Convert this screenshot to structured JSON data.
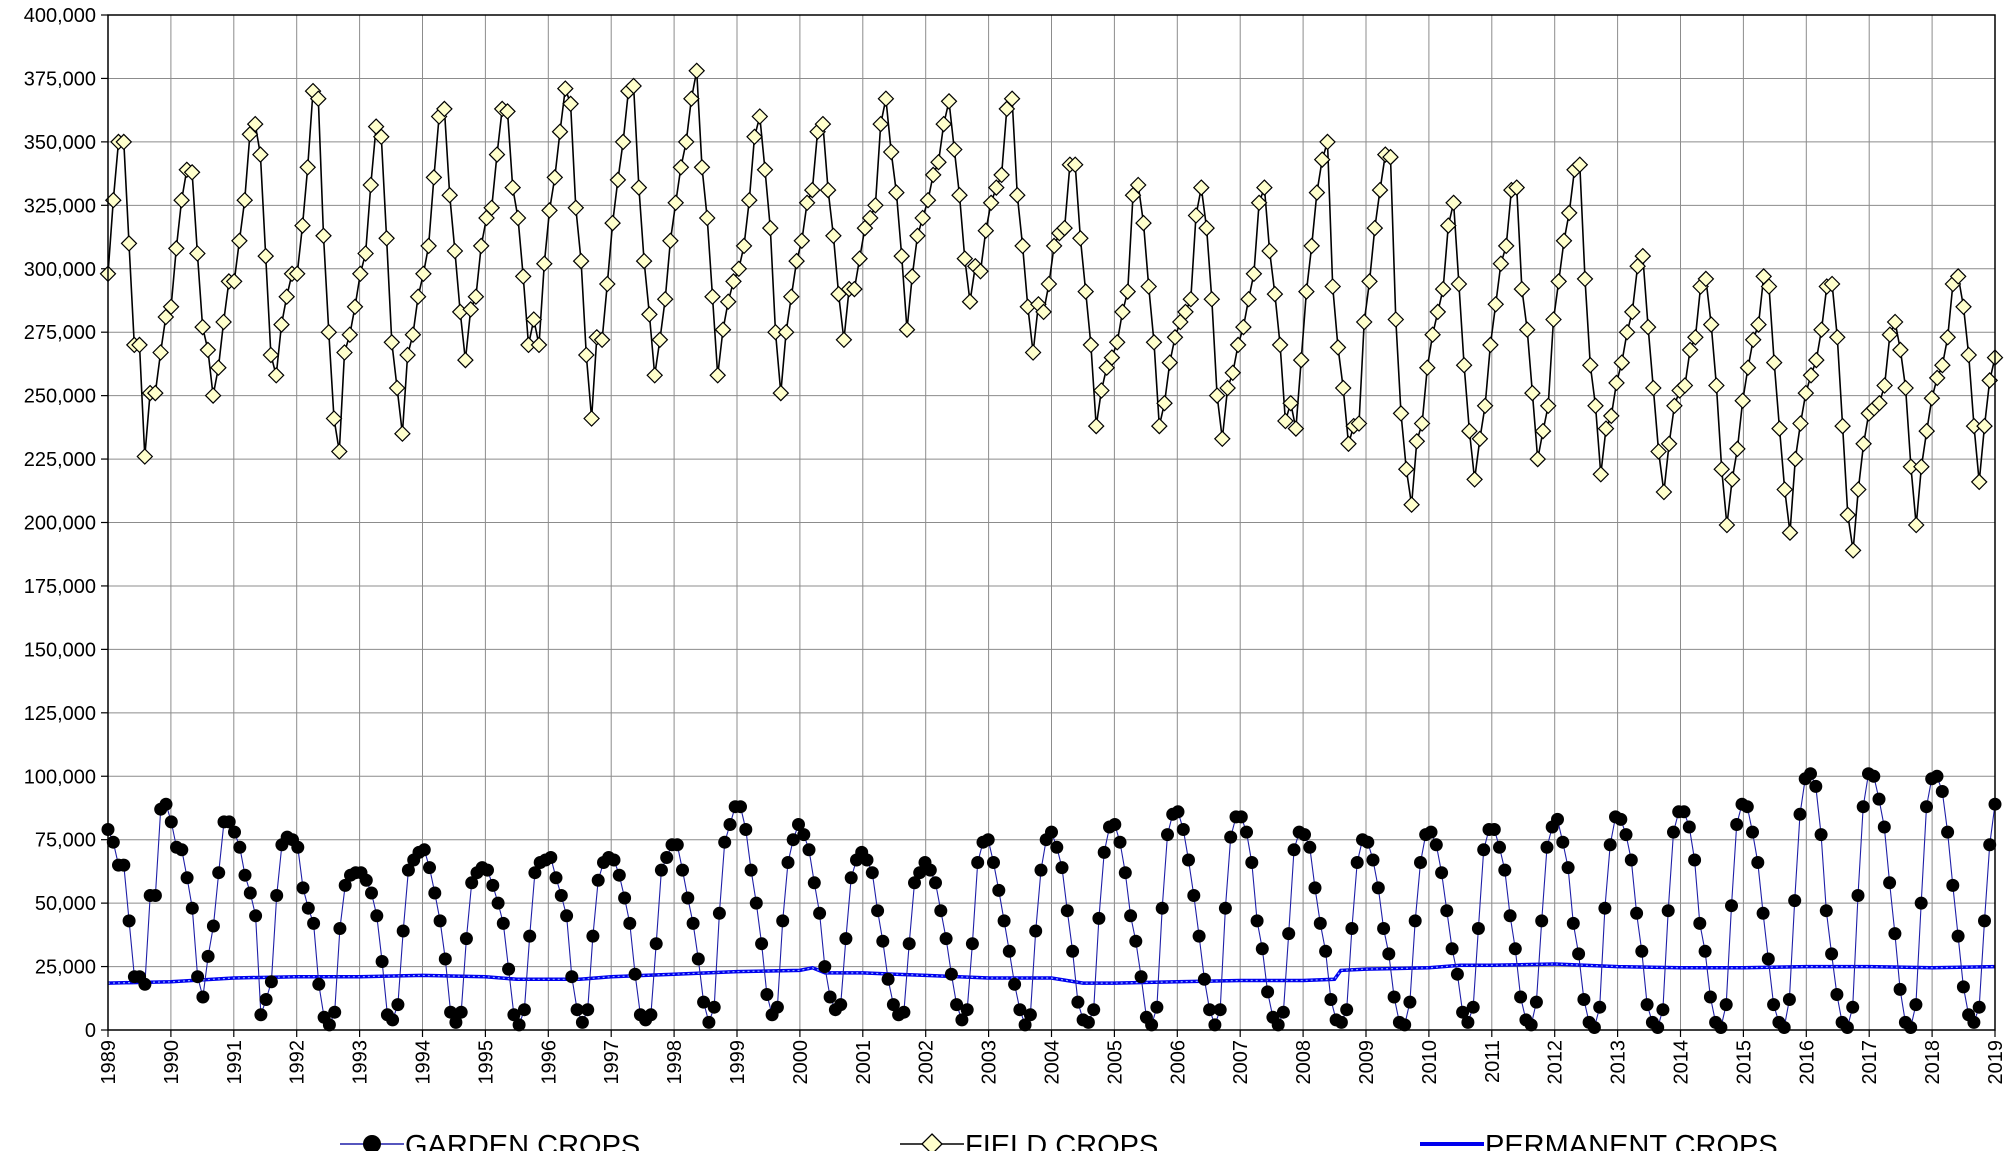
{
  "chart_data": {
    "type": "line",
    "title": "",
    "xlabel": "",
    "ylabel": "",
    "xlim": [
      1989,
      2019
    ],
    "ylim": [
      0,
      400000
    ],
    "grid": true,
    "legend_position": "bottom",
    "x_ticks": [
      "1989",
      "1990",
      "1991",
      "1992",
      "1993",
      "1994",
      "1995",
      "1996",
      "1997",
      "1998",
      "1999",
      "2000",
      "2001",
      "2002",
      "2003",
      "2004",
      "2005",
      "2006",
      "2007",
      "2008",
      "2009",
      "2010",
      "2011",
      "2012",
      "2013",
      "2014",
      "2015",
      "2016",
      "2017",
      "2018",
      "2019"
    ],
    "y_ticks": [
      "0",
      "25,000",
      "50,000",
      "75,000",
      "100,000",
      "125,000",
      "150,000",
      "175,000",
      "200,000",
      "225,000",
      "250,000",
      "275,000",
      "300,000",
      "325,000",
      "350,000",
      "375,000",
      "400,000"
    ],
    "y_tick_values": [
      0,
      25000,
      50000,
      75000,
      100000,
      125000,
      150000,
      175000,
      200000,
      225000,
      250000,
      275000,
      300000,
      325000,
      350000,
      375000,
      400000
    ],
    "series": [
      {
        "name": "GARDEN CROPS",
        "marker": "circle",
        "line_color": "#1f1fa8",
        "marker_fill": "#000000",
        "values": [
          79000,
          74000,
          65000,
          65000,
          43000,
          21000,
          21000,
          18000,
          53000,
          53000,
          87000,
          89000,
          82000,
          72000,
          71000,
          60000,
          48000,
          21000,
          13000,
          29000,
          41000,
          62000,
          82000,
          82000,
          78000,
          72000,
          61000,
          54000,
          45000,
          6000,
          12000,
          19000,
          53000,
          73000,
          76000,
          75000,
          72000,
          56000,
          48000,
          42000,
          18000,
          5000,
          2000,
          7000,
          40000,
          57000,
          61000,
          62000,
          62000,
          59000,
          54000,
          45000,
          27000,
          6000,
          4000,
          10000,
          39000,
          63000,
          67000,
          70000,
          71000,
          64000,
          54000,
          43000,
          28000,
          7000,
          3000,
          7000,
          36000,
          58000,
          62000,
          64000,
          63000,
          57000,
          50000,
          42000,
          24000,
          6000,
          2000,
          8000,
          37000,
          62000,
          66000,
          67000,
          68000,
          60000,
          53000,
          45000,
          21000,
          8000,
          3000,
          8000,
          37000,
          59000,
          66000,
          68000,
          67000,
          61000,
          52000,
          42000,
          22000,
          6000,
          4000,
          6000,
          34000,
          63000,
          68000,
          73000,
          73000,
          63000,
          52000,
          42000,
          28000,
          11000,
          3000,
          9000,
          46000,
          74000,
          81000,
          88000,
          88000,
          79000,
          63000,
          50000,
          34000,
          14000,
          6000,
          9000,
          43000,
          66000,
          75000,
          81000,
          77000,
          71000,
          58000,
          46000,
          25000,
          13000,
          8000,
          10000,
          36000,
          60000,
          67000,
          70000,
          67000,
          62000,
          47000,
          35000,
          20000,
          10000,
          6000,
          7000,
          34000,
          58000,
          62000,
          66000,
          63000,
          58000,
          47000,
          36000,
          22000,
          10000,
          4000,
          8000,
          34000,
          66000,
          74000,
          75000,
          66000,
          55000,
          43000,
          31000,
          18000,
          8000,
          2000,
          6000,
          39000,
          63000,
          75000,
          78000,
          72000,
          64000,
          47000,
          31000,
          11000,
          4000,
          3000,
          8000,
          44000,
          70000,
          80000,
          81000,
          74000,
          62000,
          45000,
          35000,
          21000,
          5000,
          2000,
          9000,
          48000,
          77000,
          85000,
          86000,
          79000,
          67000,
          53000,
          37000,
          20000,
          8000,
          2000,
          8000,
          48000,
          76000,
          84000,
          84000,
          78000,
          66000,
          43000,
          32000,
          15000,
          5000,
          2000,
          7000,
          38000,
          71000,
          78000,
          77000,
          72000,
          56000,
          42000,
          31000,
          12000,
          4000,
          3000,
          8000,
          40000,
          66000,
          75000,
          74000,
          67000,
          56000,
          40000,
          30000,
          13000,
          3000,
          2000,
          11000,
          43000,
          66000,
          77000,
          78000,
          73000,
          62000,
          47000,
          32000,
          22000,
          7000,
          3000,
          9000,
          40000,
          71000,
          79000,
          79000,
          72000,
          63000,
          45000,
          32000,
          13000,
          4000,
          2000,
          11000,
          43000,
          72000,
          80000,
          83000,
          74000,
          64000,
          42000,
          30000,
          12000,
          3000,
          1000,
          9000,
          48000,
          73000,
          84000,
          83000,
          77000,
          67000,
          46000,
          31000,
          10000,
          3000,
          1000,
          8000,
          47000,
          78000,
          86000,
          86000,
          80000,
          67000,
          42000,
          31000,
          13000,
          3000,
          1000,
          10000,
          49000,
          81000,
          89000,
          88000,
          78000,
          66000,
          46000,
          28000,
          10000,
          3000,
          1000,
          12000,
          51000,
          85000,
          99000,
          101000,
          96000,
          77000,
          47000,
          30000,
          14000,
          3000,
          1000,
          9000,
          53000,
          88000,
          101000,
          100000,
          91000,
          80000,
          58000,
          38000,
          16000,
          3000,
          1000,
          10000,
          50000,
          88000,
          99000,
          100000,
          94000,
          78000,
          57000,
          37000,
          17000,
          6000,
          3000,
          9000,
          43000,
          73000,
          89000
        ]
      },
      {
        "name": "FIELD CROPS",
        "marker": "diamond",
        "line_color": "#000000",
        "marker_fill": "#ffffcc",
        "values": [
          298000,
          327000,
          350000,
          350000,
          310000,
          270000,
          270000,
          226000,
          251000,
          251000,
          267000,
          281000,
          285000,
          308000,
          327000,
          339000,
          338000,
          306000,
          277000,
          268000,
          250000,
          261000,
          279000,
          295000,
          295000,
          311000,
          327000,
          353000,
          357000,
          345000,
          305000,
          266000,
          258000,
          278000,
          289000,
          298000,
          298000,
          317000,
          340000,
          370000,
          367000,
          313000,
          275000,
          241000,
          228000,
          267000,
          274000,
          285000,
          298000,
          306000,
          333000,
          356000,
          352000,
          312000,
          271000,
          253000,
          235000,
          266000,
          274000,
          289000,
          298000,
          309000,
          336000,
          360000,
          363000,
          329000,
          307000,
          283000,
          264000,
          284000,
          289000,
          309000,
          320000,
          324000,
          345000,
          363000,
          362000,
          332000,
          320000,
          297000,
          270000,
          280000,
          270000,
          302000,
          323000,
          336000,
          354000,
          371000,
          365000,
          324000,
          303000,
          266000,
          241000,
          273000,
          272000,
          294000,
          318000,
          335000,
          350000,
          370000,
          372000,
          332000,
          303000,
          282000,
          258000,
          272000,
          288000,
          311000,
          326000,
          340000,
          350000,
          367000,
          378000,
          340000,
          320000,
          289000,
          258000,
          276000,
          287000,
          295000,
          300000,
          309000,
          327000,
          352000,
          360000,
          339000,
          316000,
          275000,
          251000,
          275000,
          289000,
          303000,
          311000,
          326000,
          331000,
          354000,
          357000,
          331000,
          313000,
          290000,
          272000,
          292000,
          292000,
          304000,
          316000,
          320000,
          325000,
          357000,
          367000,
          346000,
          330000,
          305000,
          276000,
          297000,
          313000,
          320000,
          327000,
          337000,
          342000,
          357000,
          366000,
          347000,
          329000,
          304000,
          287000,
          301000,
          299000,
          315000,
          326000,
          332000,
          337000,
          363000,
          367000,
          329000,
          309000,
          285000,
          267000,
          286000,
          283000,
          294000,
          309000,
          314000,
          316000,
          341000,
          341000,
          312000,
          291000,
          270000,
          238000,
          252000,
          261000,
          265000,
          271000,
          283000,
          291000,
          329000,
          333000,
          318000,
          293000,
          271000,
          238000,
          247000,
          263000,
          273000,
          279000,
          283000,
          288000,
          321000,
          332000,
          316000,
          288000,
          250000,
          233000,
          253000,
          259000,
          270000,
          277000,
          288000,
          298000,
          326000,
          332000,
          307000,
          290000,
          270000,
          240000,
          247000,
          237000,
          264000,
          291000,
          309000,
          330000,
          343000,
          350000,
          293000,
          269000,
          253000,
          231000,
          238000,
          239000,
          279000,
          295000,
          316000,
          331000,
          345000,
          344000,
          280000,
          243000,
          221000,
          207000,
          232000,
          239000,
          261000,
          274000,
          283000,
          292000,
          317000,
          326000,
          294000,
          262000,
          236000,
          217000,
          233000,
          246000,
          270000,
          286000,
          302000,
          309000,
          331000,
          332000,
          292000,
          276000,
          251000,
          225000,
          236000,
          246000,
          280000,
          295000,
          311000,
          322000,
          339000,
          341000,
          296000,
          262000,
          246000,
          219000,
          237000,
          242000,
          255000,
          263000,
          275000,
          283000,
          301000,
          305000,
          277000,
          253000,
          228000,
          212000,
          231000,
          246000,
          252000,
          254000,
          268000,
          273000,
          293000,
          296000,
          278000,
          254000,
          221000,
          199000,
          217000,
          229000,
          248000,
          261000,
          272000,
          278000,
          297000,
          293000,
          263000,
          237000,
          213000,
          196000,
          225000,
          239000,
          251000,
          258000,
          264000,
          276000,
          293000,
          294000,
          273000,
          238000,
          203000,
          189000,
          213000,
          231000,
          243000,
          245000,
          247000,
          254000,
          274000,
          279000,
          268000,
          253000,
          222000,
          199000,
          222000,
          236000,
          249000,
          257000,
          262000,
          273000,
          294000,
          297000,
          285000,
          266000,
          238000,
          216000,
          238000,
          256000,
          265000
        ]
      },
      {
        "name": "PERMANENT CROPS",
        "marker": "none",
        "line_color": "#0000ee",
        "points": [
          [
            1989,
            18500
          ],
          [
            1990,
            19000
          ],
          [
            1991,
            20500
          ],
          [
            1992,
            21000
          ],
          [
            1993,
            21000
          ],
          [
            1994,
            21500
          ],
          [
            1995,
            21000
          ],
          [
            1995.5,
            20000
          ],
          [
            1996,
            20000
          ],
          [
            1996.5,
            20000
          ],
          [
            1997,
            21000
          ],
          [
            1998,
            22000
          ],
          [
            1999,
            23000
          ],
          [
            2000,
            23500
          ],
          [
            2000.2,
            24500
          ],
          [
            2000.4,
            22500
          ],
          [
            2001,
            22500
          ],
          [
            2002,
            21500
          ],
          [
            2003,
            20500
          ],
          [
            2004,
            20500
          ],
          [
            2004.5,
            18500
          ],
          [
            2005,
            18500
          ],
          [
            2006,
            19000
          ],
          [
            2007,
            19500
          ],
          [
            2008,
            19500
          ],
          [
            2008.5,
            20000
          ],
          [
            2008.6,
            23500
          ],
          [
            2009,
            24000
          ],
          [
            2010,
            24500
          ],
          [
            2010.5,
            25500
          ],
          [
            2011,
            25500
          ],
          [
            2012,
            26000
          ],
          [
            2013,
            25000
          ],
          [
            2014,
            24500
          ],
          [
            2015,
            24500
          ],
          [
            2016,
            25000
          ],
          [
            2017,
            25000
          ],
          [
            2018,
            24500
          ],
          [
            2019,
            25000
          ]
        ]
      }
    ]
  },
  "legend": {
    "items": [
      {
        "label": "GARDEN CROPS"
      },
      {
        "label": "FIELD CROPS"
      },
      {
        "label": "PERMANENT CROPS"
      }
    ]
  }
}
